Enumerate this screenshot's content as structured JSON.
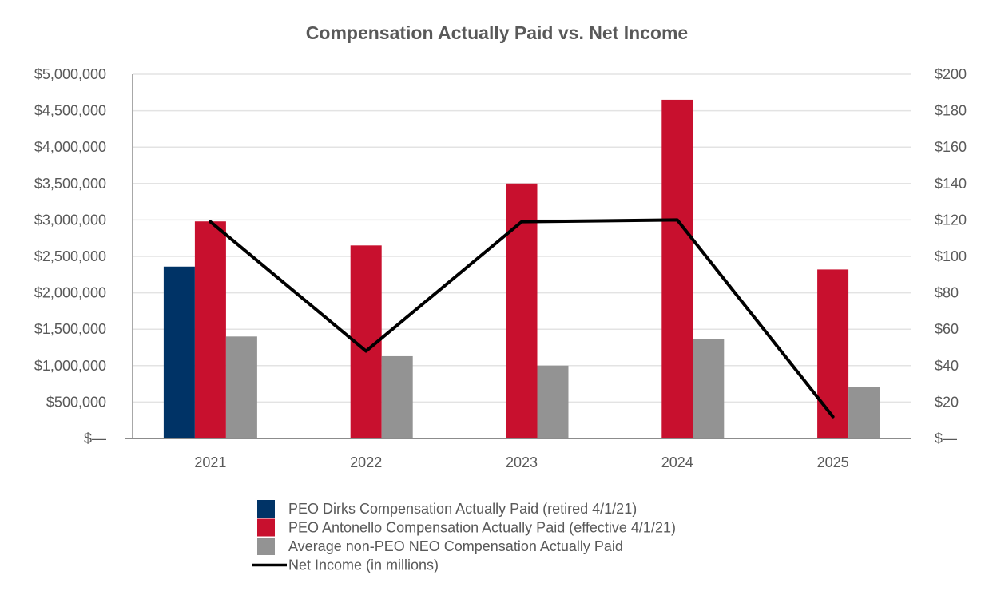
{
  "chart_data": {
    "type": "bar",
    "title": "Compensation Actually Paid vs. Net Income",
    "categories": [
      "2021",
      "2022",
      "2023",
      "2024",
      "2025"
    ],
    "series": [
      {
        "name": "PEO Dirks Compensation Actually Paid (retired 4/1/21)",
        "type": "bar",
        "color": "#003366",
        "values": [
          2360000,
          null,
          null,
          null,
          null
        ]
      },
      {
        "name": "PEO Antonello Compensation Actually Paid (effective 4/1/21)",
        "type": "bar",
        "color": "#c8102e",
        "values": [
          2980000,
          2650000,
          3500000,
          4650000,
          2320000
        ]
      },
      {
        "name": "Average non-PEO NEO Compensation Actually Paid",
        "type": "bar",
        "color": "#939393",
        "values": [
          1400000,
          1130000,
          1000000,
          1360000,
          710000
        ]
      },
      {
        "name": "Net Income (in millions)",
        "type": "line",
        "axis": "right",
        "color": "#000000",
        "values": [
          119,
          48,
          119,
          120,
          12
        ]
      }
    ],
    "y_left": {
      "ylim": [
        0,
        5000000
      ],
      "ticks": [
        0,
        500000,
        1000000,
        1500000,
        2000000,
        2500000,
        3000000,
        3500000,
        4000000,
        4500000,
        5000000
      ],
      "tick_labels": [
        "$—",
        "$500,000",
        "$1,000,000",
        "$1,500,000",
        "$2,000,000",
        "$2,500,000",
        "$3,000,000",
        "$3,500,000",
        "$4,000,000",
        "$4,500,000",
        "$5,000,000"
      ]
    },
    "y_right": {
      "ylim": [
        0,
        200
      ],
      "ticks": [
        0,
        20,
        40,
        60,
        80,
        100,
        120,
        140,
        160,
        180,
        200
      ],
      "tick_labels": [
        "$—",
        "$20",
        "$40",
        "$60",
        "$80",
        "$100",
        "$120",
        "$140",
        "$160",
        "$180",
        "$200"
      ]
    },
    "grid": true,
    "legend_position": "bottom-center"
  }
}
